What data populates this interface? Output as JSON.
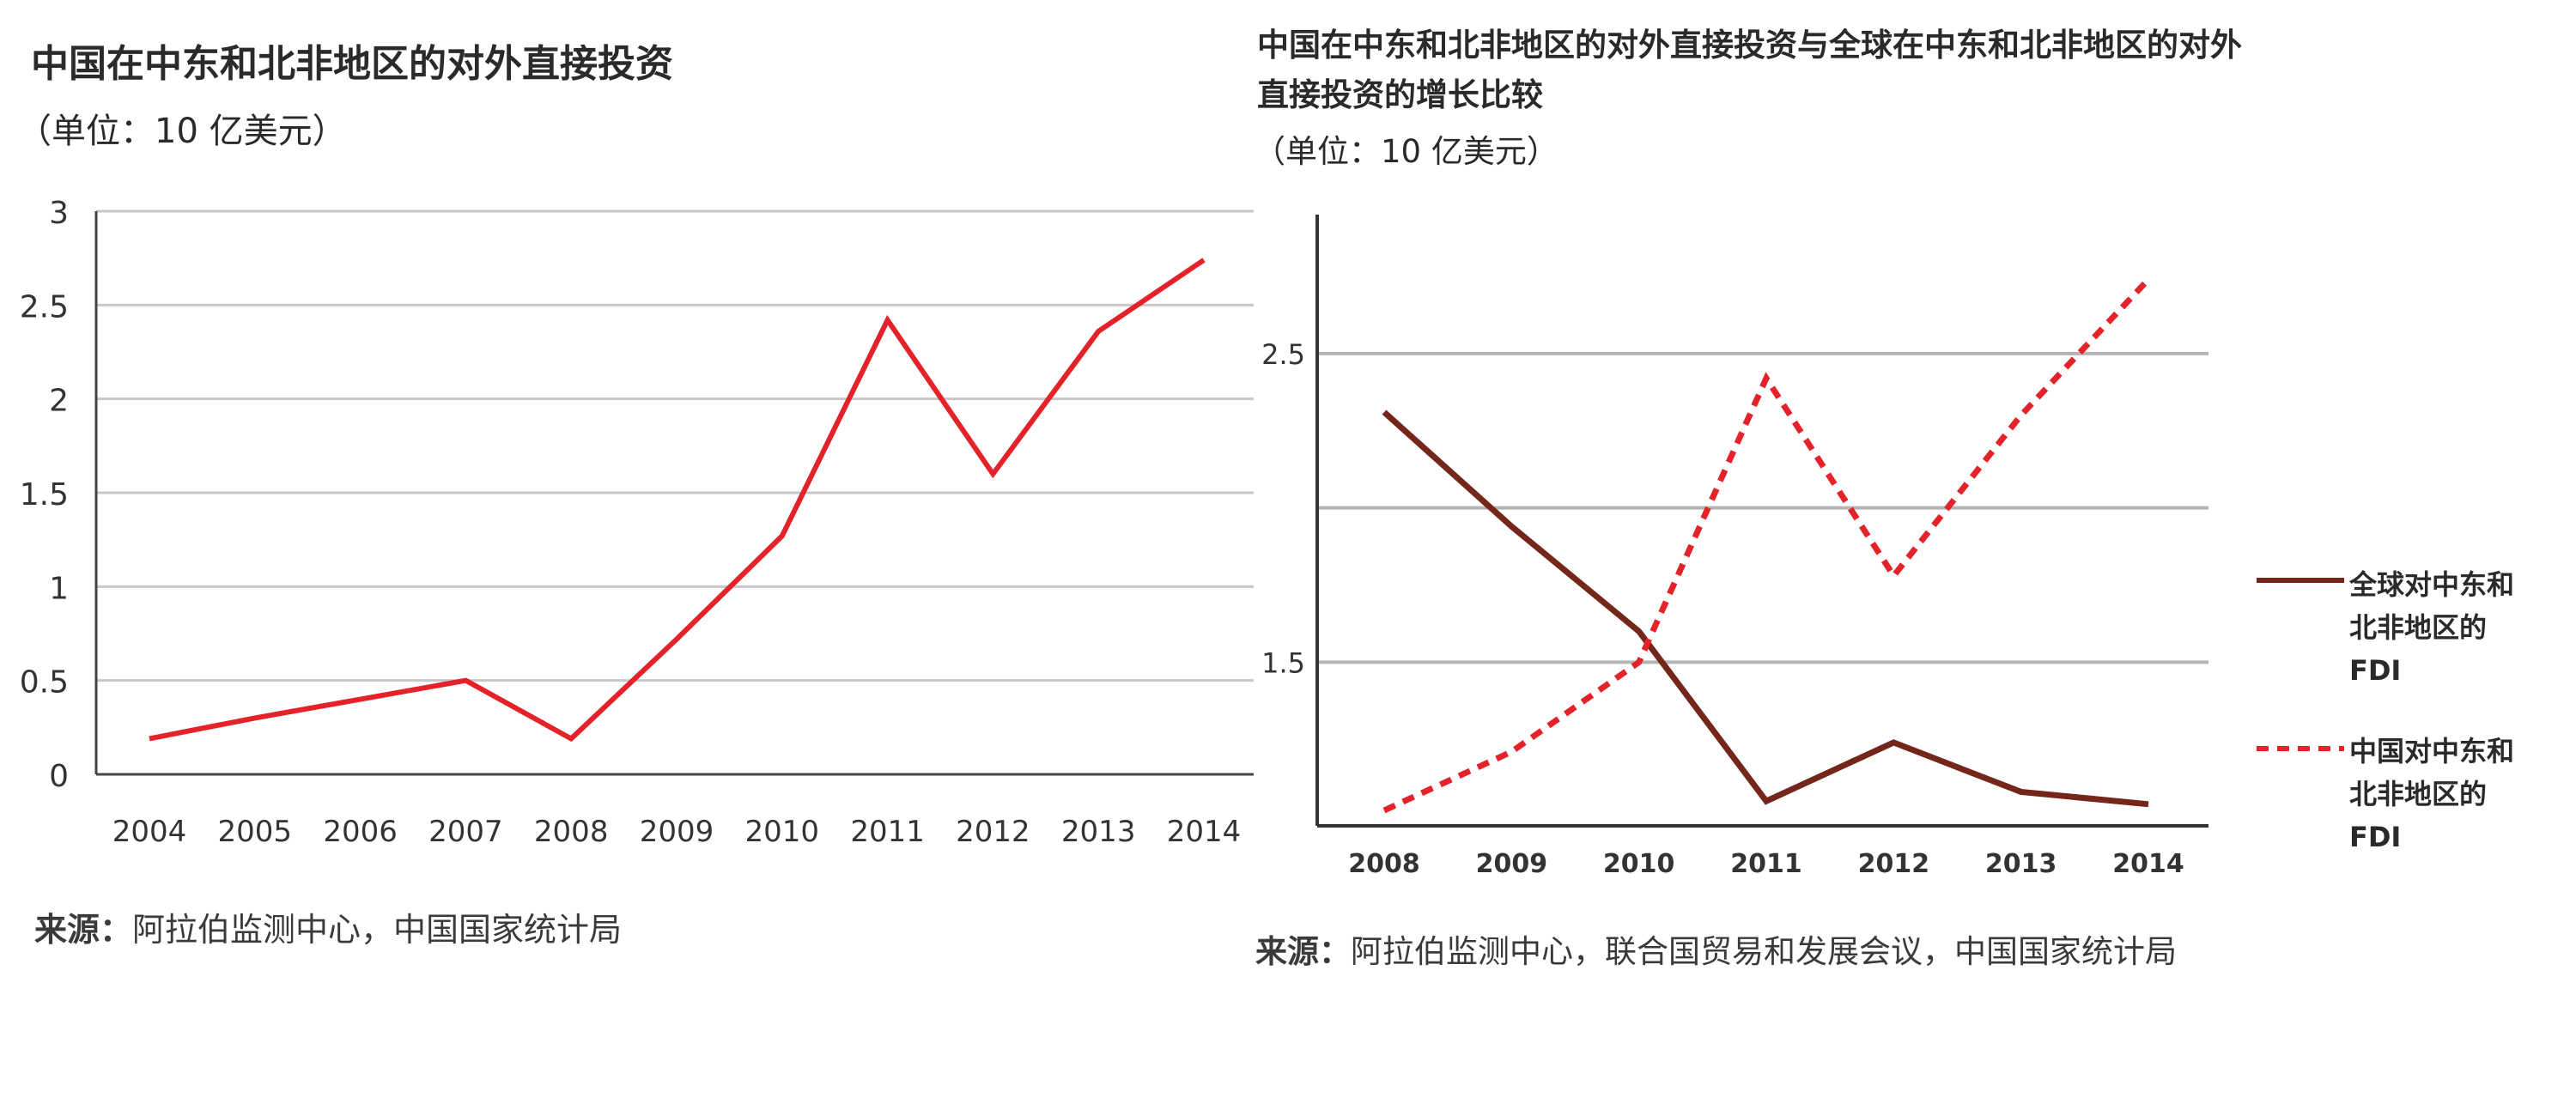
{
  "chart_data": [
    {
      "type": "line",
      "title": "中国在中东和北非地区的对外直接投资",
      "unit": "（单位：10 亿美元）",
      "categories": [
        "2004",
        "2005",
        "2006",
        "2007",
        "2008",
        "2009",
        "2010",
        "2011",
        "2012",
        "2013",
        "2014"
      ],
      "y_ticks": [
        "0",
        "0.5",
        "1",
        "1.5",
        "2",
        "2.5",
        "3"
      ],
      "ylim": [
        0,
        3
      ],
      "grid": true,
      "series": [
        {
          "values": [
            0.19,
            0.3,
            0.4,
            0.5,
            0.19,
            0.72,
            1.27,
            2.42,
            1.6,
            2.36,
            2.74
          ],
          "color": "#e4222a",
          "style": "solid"
        }
      ],
      "source_label": "来源：",
      "source_text": "阿拉伯监测中心，中国国家统计局"
    },
    {
      "type": "line",
      "title_line1": "中国在中东和北非地区的对外直接投资与全球在中东和北非地区的对外",
      "title_line2": "直接投资的增长比较",
      "unit": "（单位：10 亿美元）",
      "categories": [
        "2008",
        "2009",
        "2010",
        "2011",
        "2012",
        "2013",
        "2014"
      ],
      "y_ticks": [
        "2.5",
        "1.5"
      ],
      "y_tick_values": [
        2.5,
        1.5
      ],
      "gridlines": [
        2.5,
        2.0,
        1.5
      ],
      "ylim": [
        0.97,
        2.95
      ],
      "grid": true,
      "legend_position": "right",
      "series": [
        {
          "name": "全球对中东和北非地区的FDI",
          "legend_lines": [
            "全球对中东和",
            "北非地区的",
            "FDI"
          ],
          "values": [
            2.31,
            1.94,
            1.6,
            1.05,
            1.24,
            1.08,
            1.04
          ],
          "color": "#74261a",
          "style": "solid"
        },
        {
          "name": "中国对中东和北非地区的FDI",
          "legend_lines": [
            "中国对中东和",
            "北非地区的",
            "FDI"
          ],
          "values": [
            1.02,
            1.21,
            1.5,
            2.42,
            1.78,
            2.3,
            2.74
          ],
          "color": "#e4222a",
          "style": "dashed"
        }
      ],
      "source_label": "来源：",
      "source_text": "阿拉伯监测中心，联合国贸易和发展会议，中国国家统计局"
    }
  ]
}
